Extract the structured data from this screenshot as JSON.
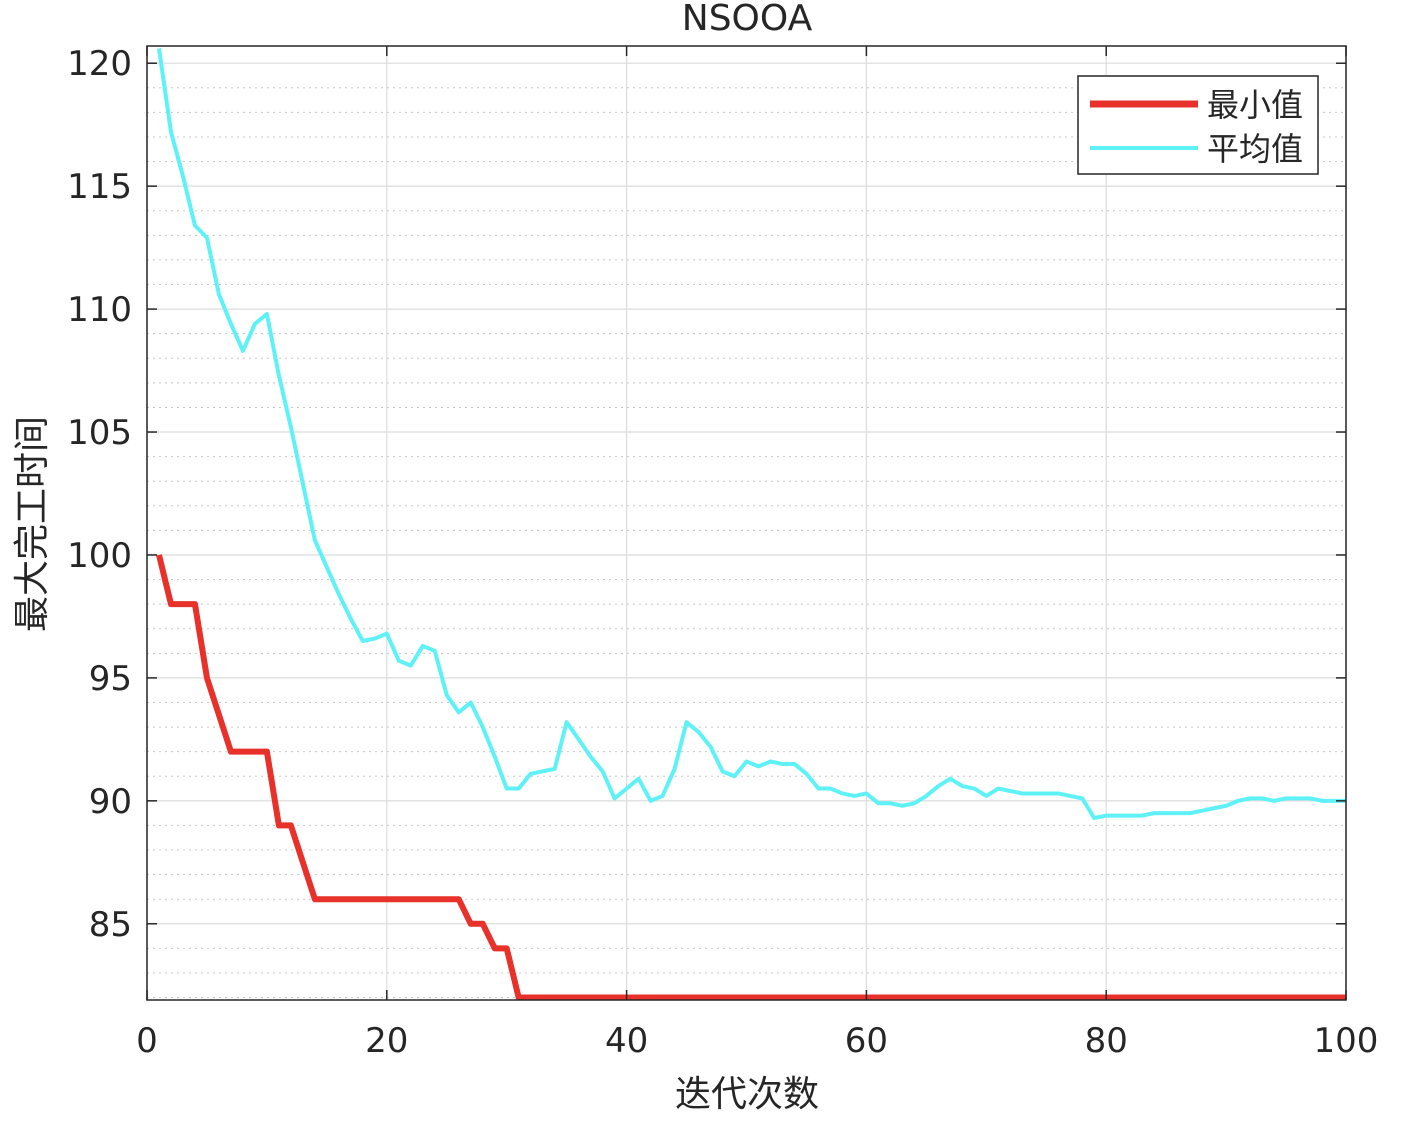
{
  "chart_data": {
    "type": "line",
    "title": "NSOOA",
    "xlabel": "迭代次数",
    "ylabel": "最大完工时间",
    "xlim": [
      0,
      100
    ],
    "ylim": [
      81.9,
      120.7
    ],
    "xticks": [
      0,
      20,
      40,
      60,
      80,
      100
    ],
    "yticks": [
      85,
      90,
      95,
      100,
      105,
      110,
      115,
      120
    ],
    "grid": "on",
    "minor_grid": "on",
    "legend_position": "top-right",
    "series": [
      {
        "name": "最小值",
        "color": "#e8312a",
        "x": [
          1,
          2,
          3,
          4,
          5,
          6,
          7,
          8,
          9,
          10,
          11,
          12,
          13,
          14,
          15,
          16,
          17,
          18,
          19,
          20,
          21,
          22,
          23,
          24,
          25,
          26,
          27,
          28,
          29,
          30,
          31,
          32,
          33,
          34,
          35,
          36,
          37,
          38,
          39,
          40,
          41,
          42,
          43,
          44,
          45,
          46,
          47,
          48,
          49,
          50,
          51,
          52,
          53,
          54,
          55,
          56,
          57,
          58,
          59,
          60,
          61,
          62,
          63,
          64,
          65,
          66,
          67,
          68,
          69,
          70,
          71,
          72,
          73,
          74,
          75,
          76,
          77,
          78,
          79,
          80,
          81,
          82,
          83,
          84,
          85,
          86,
          87,
          88,
          89,
          90,
          91,
          92,
          93,
          94,
          95,
          96,
          97,
          98,
          99,
          100
        ],
        "values": [
          100,
          98,
          98,
          98,
          95,
          93.5,
          92,
          92,
          92,
          92,
          89,
          89,
          87.5,
          86,
          86,
          86,
          86,
          86,
          86,
          86,
          86,
          86,
          86,
          86,
          86,
          86,
          85,
          85,
          84,
          84,
          82,
          82,
          82,
          82,
          82,
          82,
          82,
          82,
          82,
          82,
          82,
          82,
          82,
          82,
          82,
          82,
          82,
          82,
          82,
          82,
          82,
          82,
          82,
          82,
          82,
          82,
          82,
          82,
          82,
          82,
          82,
          82,
          82,
          82,
          82,
          82,
          82,
          82,
          82,
          82,
          82,
          82,
          82,
          82,
          82,
          82,
          82,
          82,
          82,
          82,
          82,
          82,
          82,
          82,
          82,
          82,
          82,
          82,
          82,
          82,
          82,
          82,
          82,
          82,
          82,
          82,
          82,
          82,
          82,
          82
        ]
      },
      {
        "name": "平均值",
        "color": "#5ef2f7",
        "x": [
          1,
          2,
          3,
          4,
          5,
          6,
          7,
          8,
          9,
          10,
          11,
          12,
          13,
          14,
          15,
          16,
          17,
          18,
          19,
          20,
          21,
          22,
          23,
          24,
          25,
          26,
          27,
          28,
          29,
          30,
          31,
          32,
          33,
          34,
          35,
          36,
          37,
          38,
          39,
          40,
          41,
          42,
          43,
          44,
          45,
          46,
          47,
          48,
          49,
          50,
          51,
          52,
          53,
          54,
          55,
          56,
          57,
          58,
          59,
          60,
          61,
          62,
          63,
          64,
          65,
          66,
          67,
          68,
          69,
          70,
          71,
          72,
          73,
          74,
          75,
          76,
          77,
          78,
          79,
          80,
          81,
          82,
          83,
          84,
          85,
          86,
          87,
          88,
          89,
          90,
          91,
          92,
          93,
          94,
          95,
          96,
          97,
          98,
          99,
          100
        ],
        "values": [
          120.6,
          117.2,
          115.4,
          113.4,
          112.9,
          110.6,
          109.4,
          108.3,
          109.4,
          109.8,
          107.3,
          105.2,
          102.9,
          100.6,
          99.5,
          98.4,
          97.4,
          96.5,
          96.6,
          96.8,
          95.7,
          95.5,
          96.3,
          96.1,
          94.3,
          93.6,
          94.0,
          93.0,
          91.8,
          90.5,
          90.5,
          91.1,
          91.2,
          91.3,
          93.2,
          92.5,
          91.8,
          91.2,
          90.1,
          90.5,
          90.9,
          90.0,
          90.2,
          91.3,
          93.2,
          92.8,
          92.2,
          91.2,
          91.0,
          91.6,
          91.4,
          91.6,
          91.5,
          91.5,
          91.1,
          90.5,
          90.5,
          90.3,
          90.2,
          90.3,
          89.9,
          89.9,
          89.8,
          89.9,
          90.2,
          90.6,
          90.9,
          90.6,
          90.5,
          90.2,
          90.5,
          90.4,
          90.3,
          90.3,
          90.3,
          90.3,
          90.2,
          90.1,
          89.3,
          89.4,
          89.4,
          89.4,
          89.4,
          89.5,
          89.5,
          89.5,
          89.5,
          89.6,
          89.7,
          89.8,
          90.0,
          90.1,
          90.1,
          90.0,
          90.1,
          90.1,
          90.1,
          90.0,
          90.0,
          90.0
        ]
      }
    ]
  }
}
